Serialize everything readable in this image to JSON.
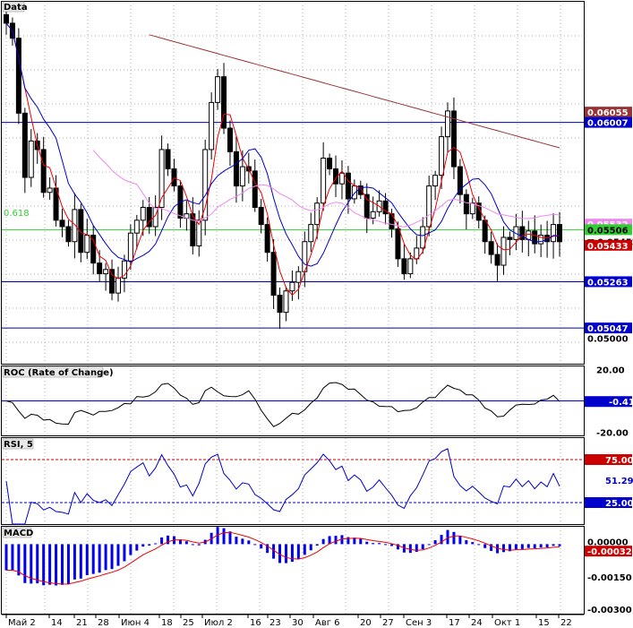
{
  "chart_data": [
    {
      "type": "candlestick",
      "title": "Data",
      "ylim": [
        0.0488,
        0.0657
      ],
      "price_labels": [
        "0.06055",
        "0.06007",
        "0.05532",
        "0.05506",
        "0.05452",
        "0.05433",
        "0.05263",
        "0.05047",
        "0.05000"
      ],
      "price_levels": [
        0.06055,
        0.06007,
        0.05532,
        0.05506,
        0.05452,
        0.05433,
        0.05263,
        0.05047,
        0.05
      ],
      "horizontal_lines": [
        0.06007,
        0.05263,
        0.05047
      ],
      "fib_level": {
        "label": "0.618",
        "value": 0.05506
      },
      "dates": [
        "Май 2",
        "14",
        "21",
        "28",
        "Июн 4",
        "18",
        "25",
        "Июл 2",
        "16",
        "23",
        "30",
        "Авг 6",
        "20",
        "27",
        "Сен 3",
        "17",
        "24",
        "Окт 1",
        "15",
        "22"
      ],
      "closes": [
        0.0647,
        0.064,
        0.0605,
        0.0575,
        0.0592,
        0.0588,
        0.0568,
        0.057,
        0.0555,
        0.0552,
        0.0545,
        0.056,
        0.054,
        0.0548,
        0.0535,
        0.053,
        0.0532,
        0.0521,
        0.0528,
        0.0536,
        0.0549,
        0.0555,
        0.0561,
        0.0552,
        0.0561,
        0.0588,
        0.0579,
        0.0571,
        0.0556,
        0.0558,
        0.0543,
        0.0555,
        0.0588,
        0.061,
        0.0622,
        0.0598,
        0.0587,
        0.0571,
        0.058,
        0.0578,
        0.0561,
        0.0553,
        0.054,
        0.052,
        0.0512,
        0.0522,
        0.0526,
        0.0531,
        0.0545,
        0.0553,
        0.0563,
        0.0584,
        0.0579,
        0.0572,
        0.0577,
        0.0565,
        0.0571,
        0.0567,
        0.0556,
        0.0559,
        0.0564,
        0.0558,
        0.0551,
        0.0537,
        0.053,
        0.0537,
        0.0542,
        0.0552,
        0.0571,
        0.0576,
        0.0594,
        0.0606,
        0.058,
        0.0567,
        0.0558,
        0.0563,
        0.0555,
        0.0545,
        0.0539,
        0.0534,
        0.0547,
        0.0546,
        0.0552,
        0.0546,
        0.055,
        0.0544,
        0.0548,
        0.0545,
        0.0553,
        0.0545
      ],
      "sma_fast_color": "#ee0000",
      "sma_mid_color": "#0000cc",
      "sma_slow_color": "#ee88ee",
      "sma_long_color": "#993333"
    },
    {
      "type": "line",
      "title": "ROC (Rate of Change)",
      "ylim": [
        -22,
        22
      ],
      "tick_labels": [
        "20.00",
        "-20.00"
      ],
      "tick_values": [
        20,
        -20
      ],
      "current_label": "-0.41",
      "current_value": -0.41
    },
    {
      "type": "line",
      "title": "RSI, 5",
      "ylim": [
        0,
        100
      ],
      "tick_labels": [
        "75.00",
        "51.29",
        "25.00"
      ],
      "tick_values": [
        75,
        51.29,
        25
      ],
      "levels": [
        75,
        25
      ]
    },
    {
      "type": "bar",
      "title": "MACD",
      "ylim": [
        -0.0032,
        0.0008
      ],
      "tick_labels": [
        "0.00000",
        "-0.00032",
        "-0.00150",
        "-0.00300"
      ],
      "tick_values": [
        0,
        -0.00032,
        -0.0015,
        -0.003
      ],
      "current_value": -0.00032
    }
  ]
}
